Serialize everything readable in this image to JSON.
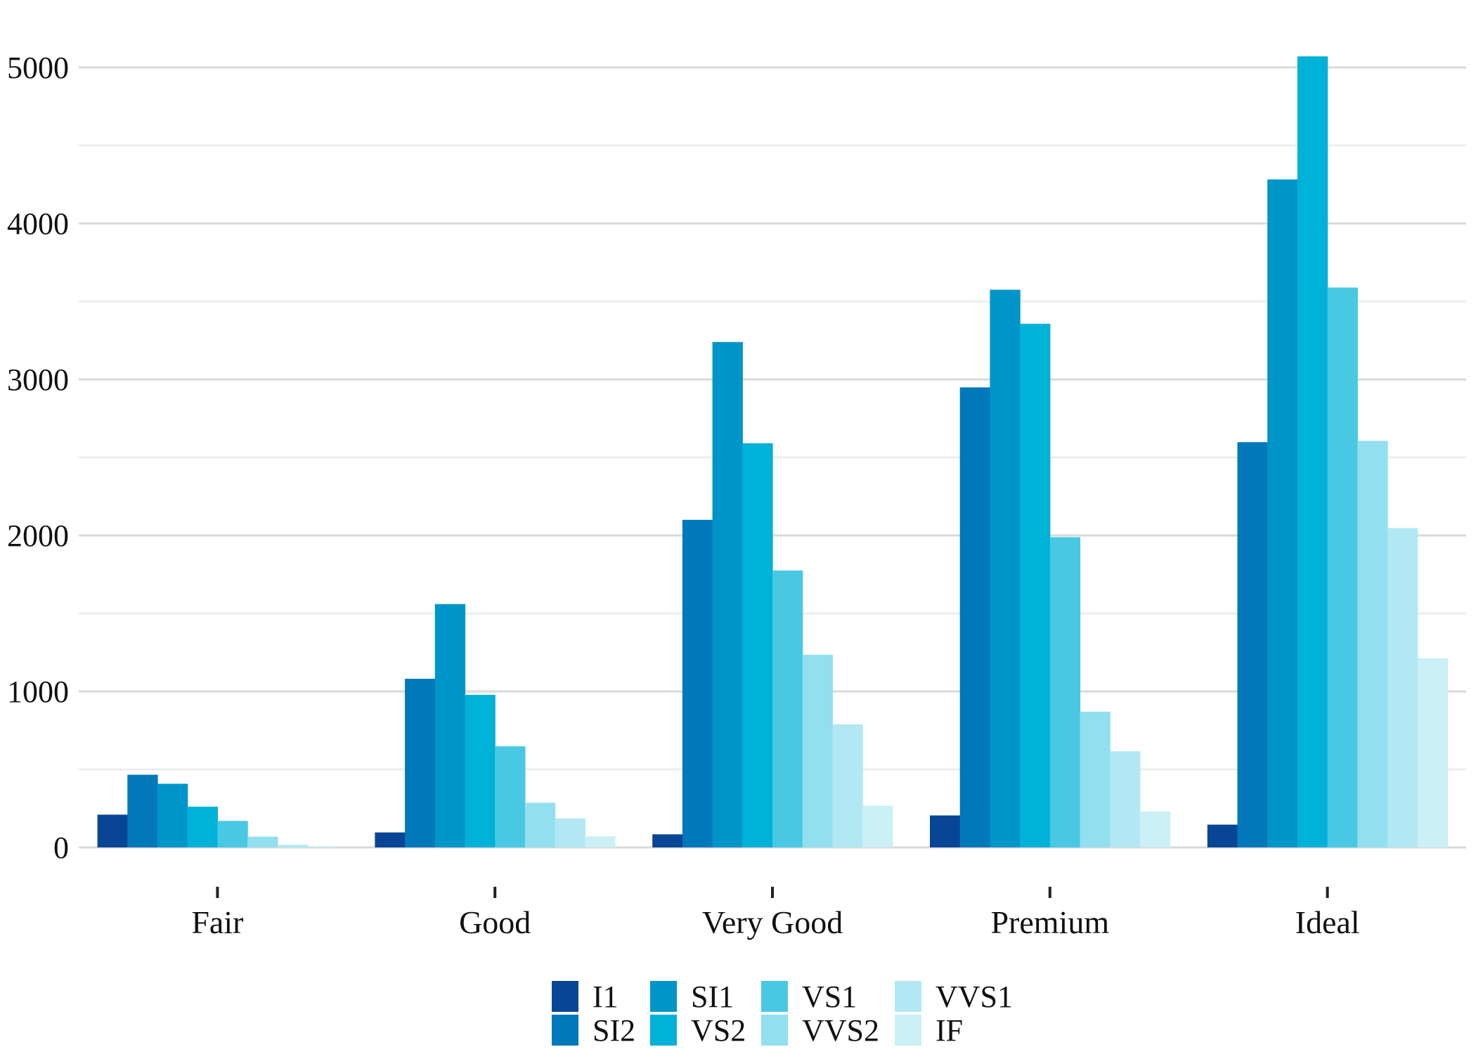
{
  "chart_data": {
    "type": "bar",
    "title": "",
    "xlabel": "",
    "ylabel": "",
    "categories": [
      "Fair",
      "Good",
      "Very Good",
      "Premium",
      "Ideal"
    ],
    "ylim": [
      0,
      5000
    ],
    "yticks": [
      "0",
      "1000",
      "2000",
      "3000",
      "4000",
      "5000"
    ],
    "grid": true,
    "legend_position": "bottom",
    "series": [
      {
        "name": "I1",
        "color": "#084594",
        "values": [
          210,
          96,
          84,
          205,
          146
        ]
      },
      {
        "name": "SI2",
        "color": "#0078b9",
        "values": [
          466,
          1081,
          2100,
          2949,
          2598
        ]
      },
      {
        "name": "SI1",
        "color": "#0095c8",
        "values": [
          408,
          1560,
          3240,
          3575,
          4282
        ]
      },
      {
        "name": "VS2",
        "color": "#00b1d8",
        "values": [
          261,
          978,
          2591,
          3357,
          5071
        ]
      },
      {
        "name": "VS1",
        "color": "#48c8e2",
        "values": [
          170,
          648,
          1775,
          1989,
          3589
        ]
      },
      {
        "name": "VVS2",
        "color": "#92dff0",
        "values": [
          69,
          286,
          1235,
          870,
          2606
        ]
      },
      {
        "name": "VVS1",
        "color": "#b1e8f3",
        "values": [
          17,
          186,
          789,
          616,
          2047
        ]
      },
      {
        "name": "IF",
        "color": "#cbf0f6",
        "values": [
          9,
          71,
          268,
          230,
          1212
        ]
      }
    ]
  }
}
